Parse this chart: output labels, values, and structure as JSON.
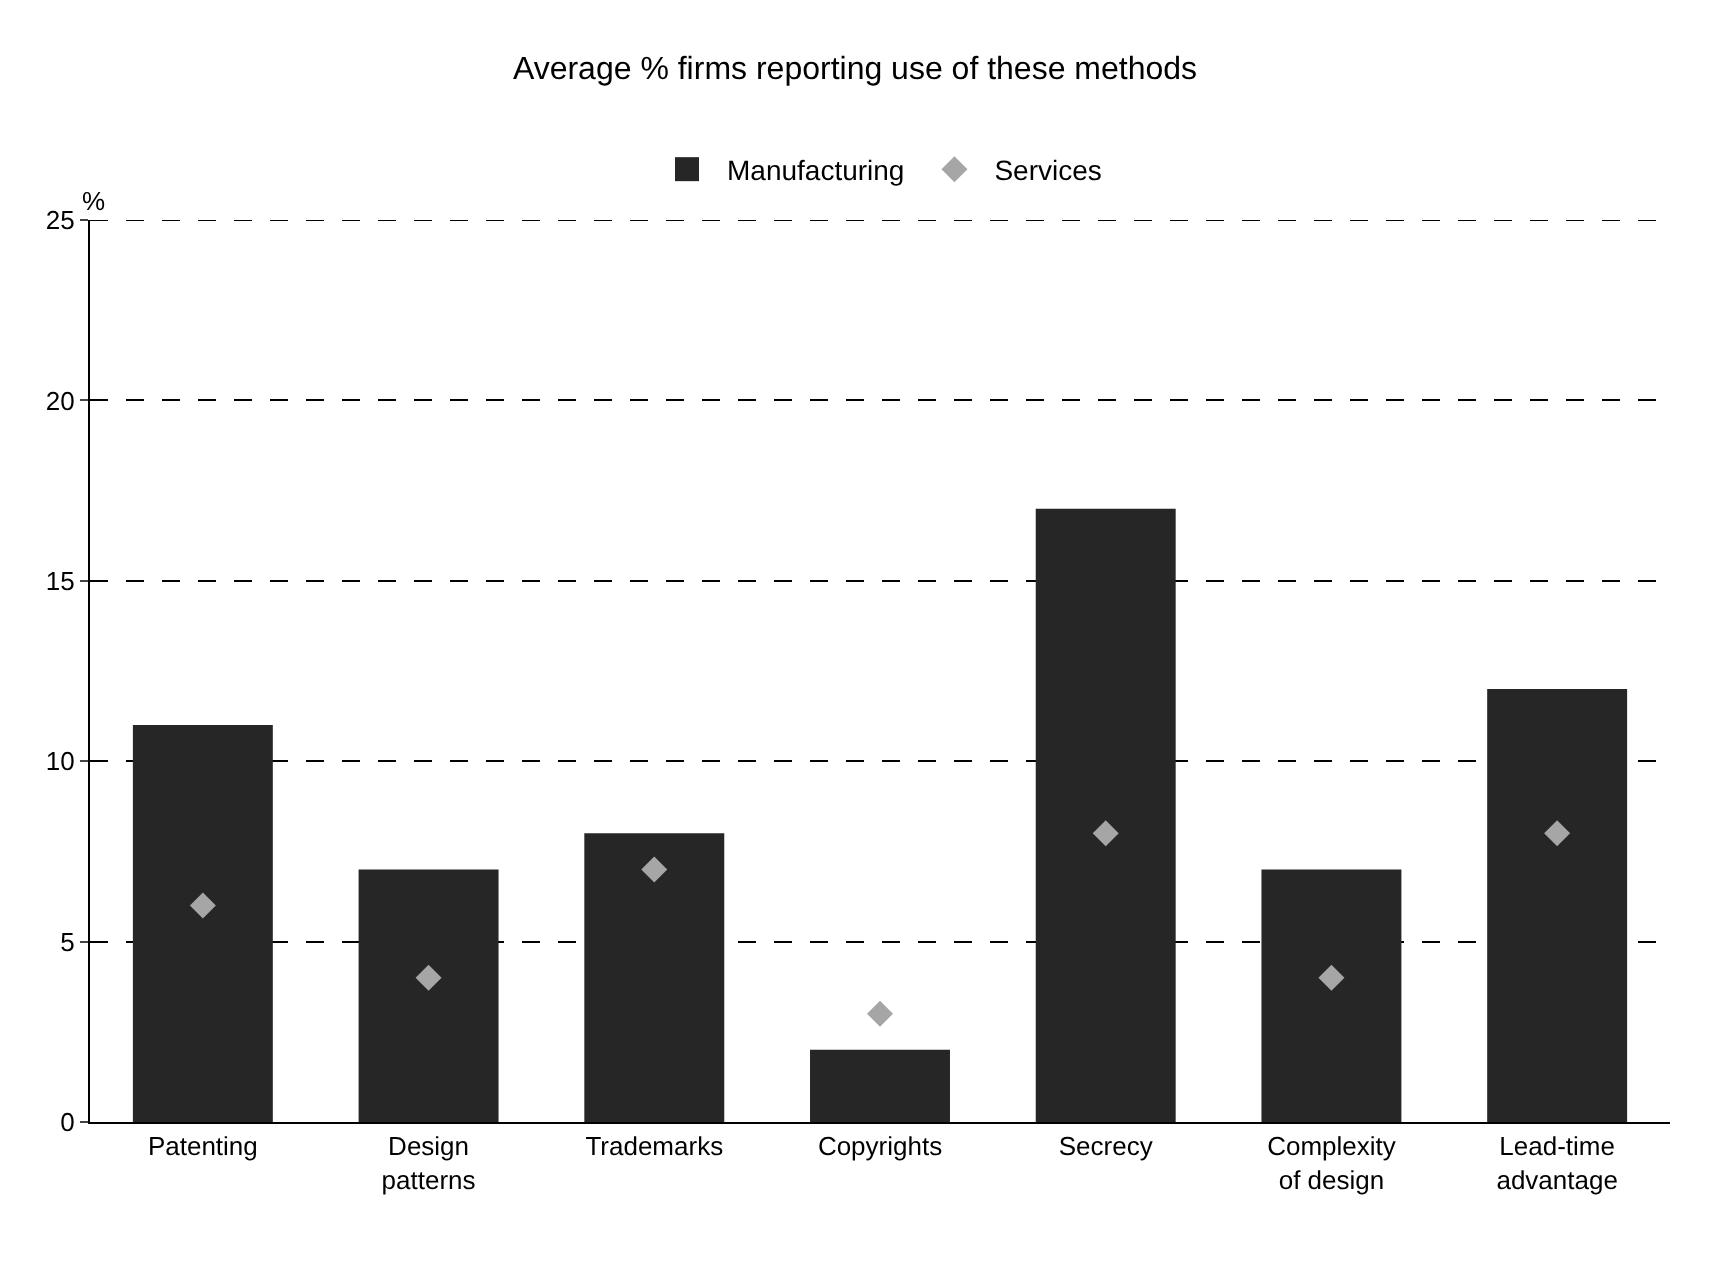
{
  "chart_data": {
    "type": "bar",
    "title": "Average % firms reporting use of these methods",
    "ylabel": "%",
    "categories": [
      "Patenting",
      "Design\npatterns",
      "Trademarks",
      "Copyrights",
      "Secrecy",
      "Complexity\nof design",
      "Lead-time\nadvantage"
    ],
    "series": [
      {
        "name": "Manufacturing",
        "color": "#262626",
        "values": [
          11,
          7,
          8,
          2,
          17,
          7,
          12
        ]
      },
      {
        "name": "Services",
        "type": "scatter",
        "marker": "diamond",
        "color": "#a6a6a6",
        "values": [
          6,
          4,
          7,
          3,
          8,
          4,
          8
        ]
      }
    ],
    "ylim": [
      0,
      25
    ],
    "yticks": [
      0,
      5,
      10,
      15,
      20,
      25
    ],
    "grid": "y",
    "legend": "top",
    "line_style": "dashed"
  }
}
